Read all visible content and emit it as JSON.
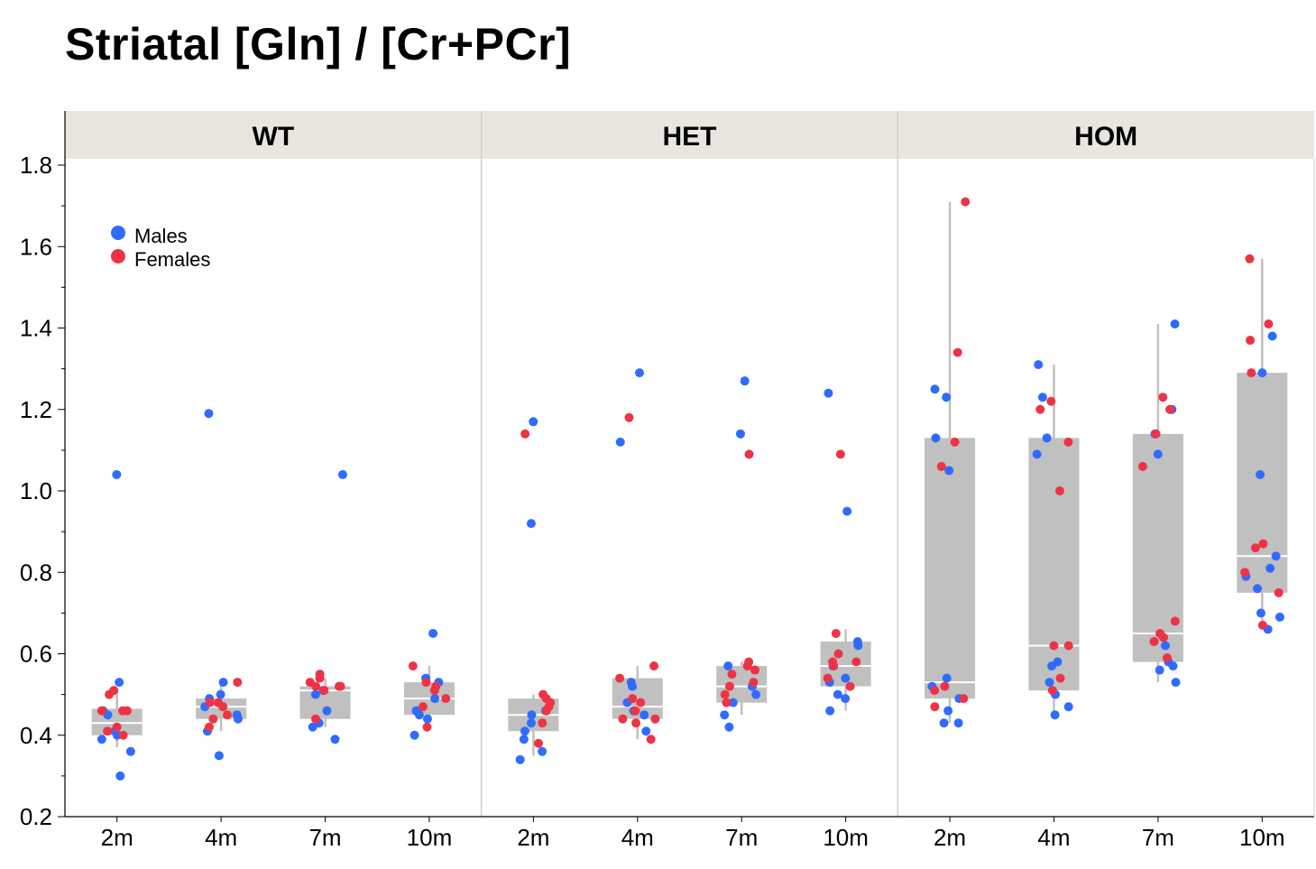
{
  "chart_data": {
    "type": "box-strip",
    "title": "Striatal [Gln] / [Cr+PCr]",
    "xlabel": "",
    "ylabel": "",
    "ylim": [
      0.2,
      1.8
    ],
    "yticks": [
      "0.2",
      "0.4",
      "0.6",
      "0.8",
      "1.0",
      "1.2",
      "1.4",
      "1.6",
      "1.8"
    ],
    "categories": [
      "2m",
      "4m",
      "7m",
      "10m"
    ],
    "legend": {
      "placement": "top-left",
      "entries": [
        {
          "name": "Males",
          "color": "#2f6bff"
        },
        {
          "name": "Females",
          "color": "#ee3344"
        }
      ]
    },
    "colors": {
      "box": "#c0c0c0",
      "median": "#ffffff",
      "whisker": "#c0c0c0",
      "strip_bg": "#e8e6df"
    },
    "panels": [
      {
        "name": "WT",
        "groups": [
          {
            "category": "2m",
            "box": {
              "q1": 0.4,
              "median": 0.43,
              "q3": 0.465,
              "whisker_low": 0.37,
              "whisker_high": 0.51
            },
            "males": [
              1.04,
              0.53,
              0.46,
              0.45,
              0.41,
              0.4,
              0.39,
              0.36,
              0.3
            ],
            "females": [
              0.51,
              0.5,
              0.46,
              0.46,
              0.46,
              0.42,
              0.41,
              0.4
            ]
          },
          {
            "category": "4m",
            "box": {
              "q1": 0.44,
              "median": 0.47,
              "q3": 0.49,
              "whisker_low": 0.41,
              "whisker_high": 0.53
            },
            "males": [
              1.19,
              0.53,
              0.5,
              0.49,
              0.47,
              0.45,
              0.44,
              0.41,
              0.35
            ],
            "females": [
              0.53,
              0.48,
              0.48,
              0.47,
              0.45,
              0.44,
              0.42
            ]
          },
          {
            "category": "7m",
            "box": {
              "q1": 0.44,
              "median": 0.51,
              "q3": 0.52,
              "whisker_low": 0.42,
              "whisker_high": 0.54
            },
            "males": [
              1.04,
              0.51,
              0.5,
              0.46,
              0.43,
              0.42,
              0.39
            ],
            "females": [
              0.55,
              0.54,
              0.53,
              0.52,
              0.52,
              0.52,
              0.51,
              0.44
            ]
          },
          {
            "category": "10m",
            "box": {
              "q1": 0.45,
              "median": 0.49,
              "q3": 0.53,
              "whisker_low": 0.43,
              "whisker_high": 0.57
            },
            "males": [
              0.65,
              0.54,
              0.53,
              0.49,
              0.46,
              0.45,
              0.44,
              0.4
            ],
            "females": [
              0.57,
              0.53,
              0.52,
              0.51,
              0.49,
              0.47,
              0.42
            ]
          }
        ]
      },
      {
        "name": "HET",
        "groups": [
          {
            "category": "2m",
            "box": {
              "q1": 0.41,
              "median": 0.45,
              "q3": 0.49,
              "whisker_low": 0.35,
              "whisker_high": 0.5
            },
            "males": [
              1.17,
              0.92,
              0.46,
              0.45,
              0.43,
              0.41,
              0.39,
              0.36,
              0.34
            ],
            "females": [
              1.14,
              0.5,
              0.49,
              0.48,
              0.47,
              0.46,
              0.43,
              0.38
            ]
          },
          {
            "category": "4m",
            "box": {
              "q1": 0.44,
              "median": 0.47,
              "q3": 0.54,
              "whisker_low": 0.39,
              "whisker_high": 0.57
            },
            "males": [
              1.29,
              1.12,
              0.53,
              0.52,
              0.48,
              0.46,
              0.45,
              0.41
            ],
            "females": [
              1.18,
              0.57,
              0.54,
              0.49,
              0.48,
              0.46,
              0.44,
              0.44,
              0.43,
              0.39
            ]
          },
          {
            "category": "7m",
            "box": {
              "q1": 0.48,
              "median": 0.52,
              "q3": 0.57,
              "whisker_low": 0.45,
              "whisker_high": 0.58
            },
            "males": [
              1.27,
              1.14,
              0.57,
              0.52,
              0.5,
              0.48,
              0.45,
              0.42
            ],
            "females": [
              1.09,
              0.58,
              0.57,
              0.56,
              0.55,
              0.53,
              0.52,
              0.5,
              0.48
            ]
          },
          {
            "category": "10m",
            "box": {
              "q1": 0.52,
              "median": 0.57,
              "q3": 0.63,
              "whisker_low": 0.46,
              "whisker_high": 0.66
            },
            "males": [
              1.24,
              0.95,
              0.63,
              0.62,
              0.57,
              0.54,
              0.53,
              0.5,
              0.49,
              0.46
            ],
            "females": [
              1.09,
              0.65,
              0.6,
              0.58,
              0.58,
              0.57,
              0.54,
              0.52
            ]
          }
        ]
      },
      {
        "name": "HOM",
        "groups": [
          {
            "category": "2m",
            "box": {
              "q1": 0.49,
              "median": 0.53,
              "q3": 1.13,
              "whisker_low": 0.43,
              "whisker_high": 1.71
            },
            "males": [
              1.25,
              1.23,
              1.13,
              1.05,
              0.54,
              0.52,
              0.49,
              0.46,
              0.43,
              0.43
            ],
            "females": [
              1.71,
              1.34,
              1.12,
              1.06,
              0.52,
              0.51,
              0.49,
              0.47
            ]
          },
          {
            "category": "4m",
            "box": {
              "q1": 0.51,
              "median": 0.62,
              "q3": 1.13,
              "whisker_low": 0.45,
              "whisker_high": 1.31
            },
            "males": [
              1.31,
              1.23,
              1.13,
              1.09,
              0.58,
              0.57,
              0.53,
              0.5,
              0.47,
              0.45
            ],
            "females": [
              1.22,
              1.2,
              1.12,
              1.0,
              0.62,
              0.62,
              0.54,
              0.51
            ]
          },
          {
            "category": "7m",
            "box": {
              "q1": 0.58,
              "median": 0.65,
              "q3": 1.14,
              "whisker_low": 0.53,
              "whisker_high": 1.41
            },
            "males": [
              1.41,
              1.2,
              1.14,
              1.09,
              0.62,
              0.58,
              0.57,
              0.56,
              0.53
            ],
            "females": [
              1.23,
              1.2,
              1.14,
              1.06,
              0.68,
              0.65,
              0.64,
              0.63,
              0.59
            ]
          },
          {
            "category": "10m",
            "box": {
              "q1": 0.75,
              "median": 0.84,
              "q3": 1.29,
              "whisker_low": 0.66,
              "whisker_high": 1.57
            },
            "males": [
              1.38,
              1.29,
              1.04,
              0.84,
              0.81,
              0.79,
              0.76,
              0.7,
              0.69,
              0.66
            ],
            "females": [
              1.57,
              1.41,
              1.37,
              1.29,
              0.87,
              0.86,
              0.8,
              0.75,
              0.67
            ]
          }
        ]
      }
    ]
  }
}
